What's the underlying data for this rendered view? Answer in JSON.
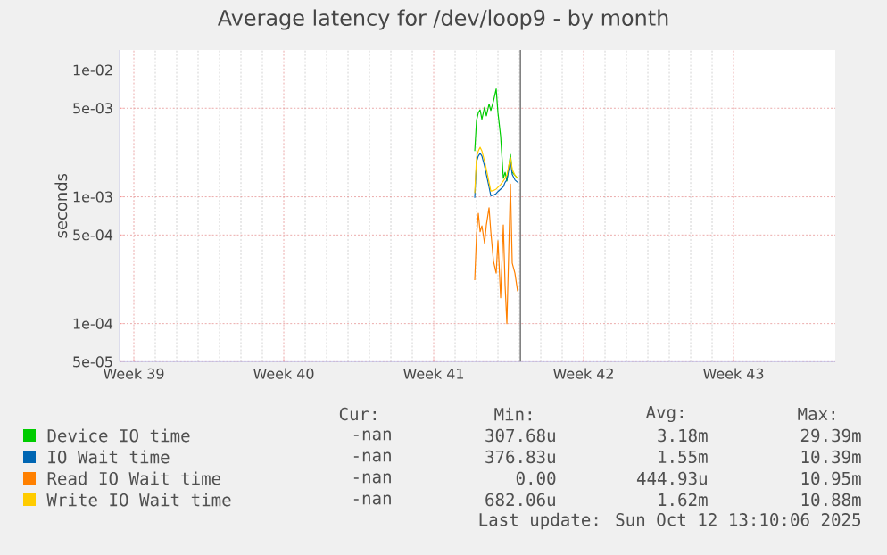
{
  "chart_data": {
    "type": "line",
    "title": "Average latency for /dev/loop9 - by month",
    "ylabel": "seconds",
    "log": "y",
    "grid": true,
    "legend": "bottom",
    "xlim": [
      "2025-09-23T20:00",
      "2025-10-27T06:00"
    ],
    "xticks": [
      {
        "value": "2025-09-24T12:00",
        "label": "Week 39"
      },
      {
        "value": "2025-10-01T12:00",
        "label": "Week 40"
      },
      {
        "value": "2025-10-08T12:00",
        "label": "Week 41"
      },
      {
        "value": "2025-10-15T12:00",
        "label": "Week 42"
      },
      {
        "value": "2025-10-22T12:00",
        "label": "Week 43"
      }
    ],
    "ylim": [
      5e-05,
      0.0144
    ],
    "yticks": [
      {
        "value": 5e-05,
        "label": "5e-05"
      },
      {
        "value": 0.0001,
        "label": "1e-04"
      },
      {
        "value": 0.0005,
        "label": "5e-04"
      },
      {
        "value": 0.001,
        "label": "1e-03"
      },
      {
        "value": 0.005,
        "label": "5e-03"
      },
      {
        "value": 0.01,
        "label": "1e-02"
      }
    ],
    "x": [
      "2025-10-10T10:00",
      "2025-10-10T12:00",
      "2025-10-10T14:00",
      "2025-10-10T16:00",
      "2025-10-10T18:00",
      "2025-10-10T21:00",
      "2025-10-10T23:00",
      "2025-10-11T02:00",
      "2025-10-11T04:00",
      "2025-10-11T07:00",
      "2025-10-11T10:00",
      "2025-10-11T12:00",
      "2025-10-11T15:00",
      "2025-10-11T18:00",
      "2025-10-11T20:00",
      "2025-10-11T22:00",
      "2025-10-12T02:00",
      "2025-10-12T04:00",
      "2025-10-12T07:00",
      "2025-10-12T10:00"
    ],
    "series": [
      {
        "name": "Device IO time",
        "color": "#00cc00",
        "values": [
          0.0023,
          0.004,
          0.0046,
          0.00485,
          0.0041,
          0.0051,
          0.00435,
          0.0054,
          0.0048,
          0.0057,
          0.0071,
          0.0046,
          0.003,
          0.0014,
          0.00156,
          0.00133,
          0.00216,
          0.00156,
          0.00148,
          0.0014
        ]
      },
      {
        "name": "IO Wait time",
        "color": "#0066b3",
        "values": [
          0.00098,
          0.0019,
          0.0021,
          0.0022,
          0.0021,
          0.00175,
          0.0015,
          0.0012,
          0.00102,
          0.00103,
          0.00106,
          0.0011,
          0.00115,
          0.0012,
          0.0013,
          0.00136,
          0.0019,
          0.0015,
          0.00136,
          0.0013
        ]
      },
      {
        "name": "Read IO Wait time",
        "color": "#ff8000",
        "values": [
          0.00022,
          0.0005,
          0.00074,
          0.00053,
          0.00059,
          0.00043,
          0.0006,
          0.00082,
          0.00053,
          0.00031,
          0.00025,
          0.00045,
          0.00016,
          0.0006,
          0.0002,
          0.0001,
          0.00126,
          0.0003,
          0.00025,
          0.00018
        ]
      },
      {
        "name": "Write IO Wait time",
        "color": "#ffcc00",
        "values": [
          0.00107,
          0.00205,
          0.0023,
          0.00246,
          0.0023,
          0.0019,
          0.00165,
          0.0013,
          0.00111,
          0.00112,
          0.00115,
          0.00119,
          0.00125,
          0.00133,
          0.0014,
          0.00148,
          0.00205,
          0.00165,
          0.00148,
          0.0014
        ]
      }
    ],
    "ref_lines": [
      {
        "axis": "x",
        "value": "2025-10-12T13:10",
        "color": "#7f7f7f"
      }
    ],
    "annotations": [
      "Cur:",
      "Min:",
      "Avg:",
      "Max:",
      "-nan",
      "307.68u",
      "3.18m",
      "29.39m",
      "-nan",
      "376.83u",
      "1.55m",
      "10.39m",
      "-nan",
      "0.00",
      "444.93u",
      "10.95m",
      "-nan",
      "682.06u",
      "1.62m",
      "10.88m",
      "Last update: Sun Oct 12 13:10:06 2025"
    ]
  }
}
